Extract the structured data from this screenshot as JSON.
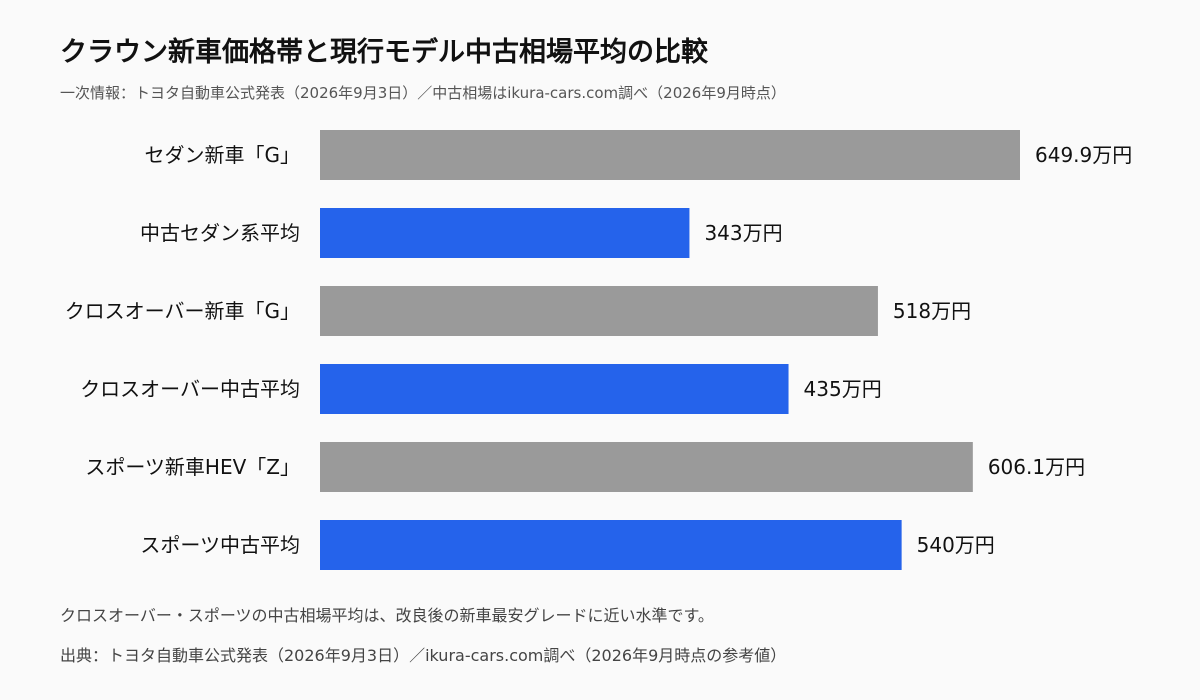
{
  "header": {
    "title": "クラウン新車価格帯と現行モデル中古相場平均の比較",
    "subtitle": "一次情報：トヨタ自動車公式発表（2026年9月3日）／中古相場はikura-cars.com調べ（2026年9月時点）"
  },
  "footer": {
    "note": "クロスオーバー・スポーツの中古相場平均は、改良後の新車最安グレードに近い水準です。",
    "source": "出典：トヨタ自動車公式発表（2026年9月3日）／ikura-cars.com調べ（2026年9月時点の参考値）"
  },
  "colors": {
    "new_car": "#9a9a9a",
    "used_avg": "#2563eb"
  },
  "chart_data": {
    "type": "bar",
    "orientation": "horizontal",
    "categories": [
      "セダン新車「G」",
      "中古セダン系平均",
      "クロスオーバー新車「G」",
      "クロスオーバー中古平均",
      "スポーツ新車HEV「Z」",
      "スポーツ中古平均"
    ],
    "values": [
      649.9,
      343,
      518,
      435,
      606.1,
      540
    ],
    "value_labels": [
      "649.9万円",
      "343万円",
      "518万円",
      "435万円",
      "606.1万円",
      "540万円"
    ],
    "bar_kinds": [
      "new_car",
      "used_avg",
      "new_car",
      "used_avg",
      "new_car",
      "used_avg"
    ],
    "unit": "万円",
    "xlim": [
      0,
      649.9
    ],
    "grid": false,
    "legend": "none"
  }
}
